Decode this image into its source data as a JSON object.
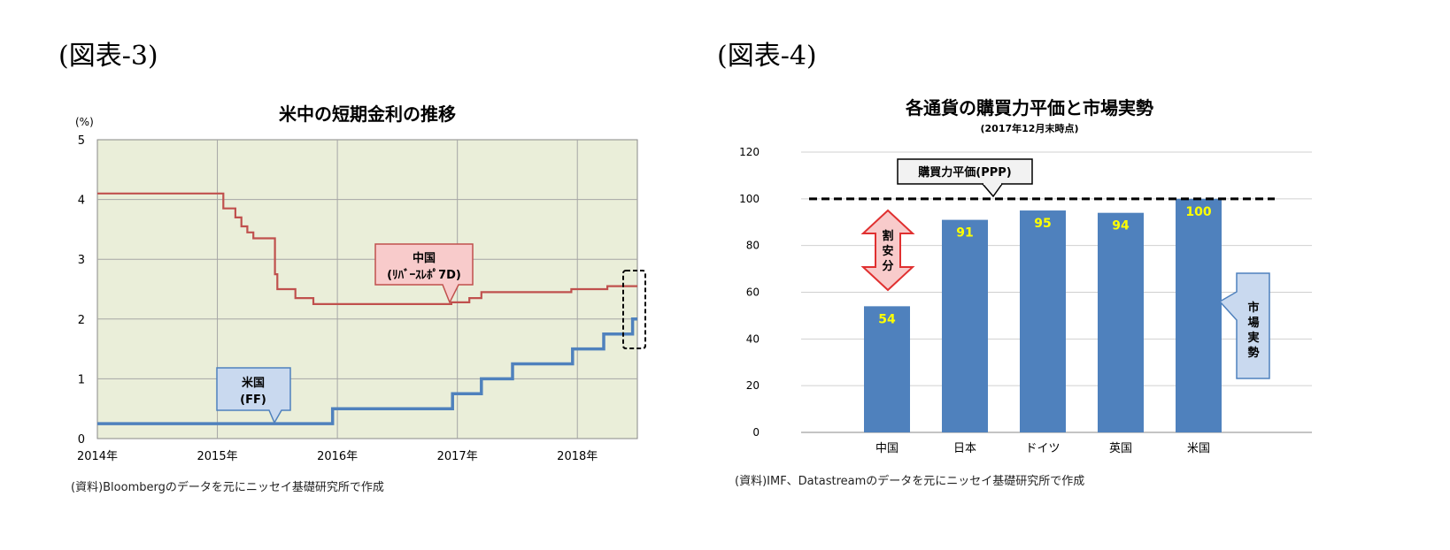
{
  "figures": {
    "left_label": "(図表-3)",
    "right_label": "(図表-4)"
  },
  "chart_data": [
    {
      "type": "line",
      "title": "米中の短期金利の推移",
      "ylabel": "(%)",
      "xlabel": "",
      "ylim": [
        0,
        5
      ],
      "yticks": [
        "0",
        "1",
        "2",
        "3",
        "4",
        "5"
      ],
      "xticks": [
        "2014年",
        "2015年",
        "2016年",
        "2017年",
        "2018年"
      ],
      "xlim": [
        2014.0,
        2018.5
      ],
      "grid": true,
      "background": "#eaeed9",
      "series": [
        {
          "name": "中国",
          "callout": [
            "中国",
            "(ﾘﾊﾞｰｽﾚﾎﾟ7D)"
          ],
          "color": "#c0504d",
          "x": [
            2014.0,
            2015.05,
            2015.05,
            2015.15,
            2015.15,
            2015.2,
            2015.2,
            2015.25,
            2015.25,
            2015.3,
            2015.3,
            2015.48,
            2015.48,
            2015.5,
            2015.5,
            2015.65,
            2015.65,
            2015.8,
            2015.8,
            2016.95,
            2016.95,
            2017.1,
            2017.1,
            2017.2,
            2017.2,
            2017.95,
            2017.95,
            2018.25,
            2018.25,
            2018.5
          ],
          "y": [
            4.1,
            4.1,
            3.85,
            3.85,
            3.7,
            3.7,
            3.55,
            3.55,
            3.45,
            3.45,
            3.35,
            3.35,
            2.75,
            2.75,
            2.5,
            2.5,
            2.35,
            2.35,
            2.25,
            2.25,
            2.28,
            2.28,
            2.35,
            2.35,
            2.45,
            2.45,
            2.5,
            2.5,
            2.55,
            2.55
          ]
        },
        {
          "name": "米国",
          "callout": [
            "米国",
            "(FF)"
          ],
          "color": "#4f81bd",
          "x": [
            2014.0,
            2015.96,
            2015.96,
            2016.96,
            2016.96,
            2017.2,
            2017.2,
            2017.46,
            2017.46,
            2017.96,
            2017.96,
            2018.22,
            2018.22,
            2018.46,
            2018.46,
            2018.5
          ],
          "y": [
            0.25,
            0.25,
            0.5,
            0.5,
            0.75,
            0.75,
            1.0,
            1.0,
            1.25,
            1.25,
            1.5,
            1.5,
            1.75,
            1.75,
            2.0,
            2.0
          ]
        }
      ],
      "source": "(資料)Bloombergのデータを元にニッセイ基礎研究所で作成"
    },
    {
      "type": "bar",
      "title": "各通貨の購買力平価と市場実勢",
      "subtitle": "(2017年12月末時点)",
      "categories": [
        "中国",
        "日本",
        "ドイツ",
        "英国",
        "米国"
      ],
      "values": [
        54,
        91,
        95,
        94,
        100
      ],
      "value_labels": [
        "54",
        "91",
        "95",
        "94",
        "100"
      ],
      "ylim": [
        0,
        120
      ],
      "yticks": [
        "0",
        "20",
        "40",
        "60",
        "80",
        "100",
        "120"
      ],
      "grid": true,
      "bar_color": "#4f81bd",
      "label_color": "#ffff00",
      "reference_line": {
        "value": 100,
        "label": "購買力平価(PPP)"
      },
      "arrow_label": [
        "割",
        "安",
        "分"
      ],
      "market_label": [
        "市",
        "場",
        "実",
        "勢"
      ],
      "source": "(資料)IMF、Datastreamのデータを元にニッセイ基礎研究所で作成"
    }
  ]
}
